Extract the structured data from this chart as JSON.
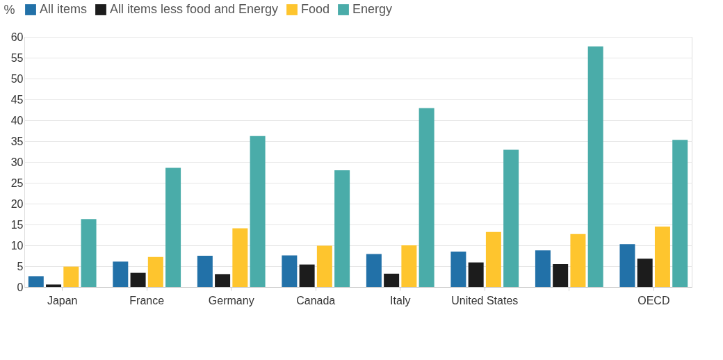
{
  "chart_data": {
    "type": "bar",
    "ylabel": "%",
    "categories": [
      "Japan",
      "France",
      "Germany",
      "Canada",
      "Italy",
      "United States",
      null,
      "OECD"
    ],
    "series": [
      {
        "name": "All items",
        "color": "#2271a8",
        "values": [
          2.6,
          6.1,
          7.5,
          7.6,
          7.9,
          8.5,
          8.8,
          10.3
        ]
      },
      {
        "name": "All items less food and Energy",
        "color": "#1c1c1c",
        "values": [
          0.6,
          3.4,
          3.1,
          5.4,
          3.2,
          5.9,
          5.5,
          6.8
        ]
      },
      {
        "name": "Food",
        "color": "#fec52e",
        "values": [
          4.9,
          7.2,
          14.1,
          9.9,
          10.0,
          13.2,
          12.7,
          14.5
        ]
      },
      {
        "name": "Energy",
        "color": "#4aaca9",
        "values": [
          16.3,
          28.6,
          36.2,
          28.0,
          42.9,
          32.9,
          57.7,
          35.3
        ]
      }
    ],
    "ylim": [
      0,
      60
    ],
    "yticks": [
      0,
      5,
      10,
      15,
      20,
      25,
      30,
      35,
      40,
      45,
      50,
      55,
      60
    ],
    "grid": "y",
    "legend": "top"
  }
}
